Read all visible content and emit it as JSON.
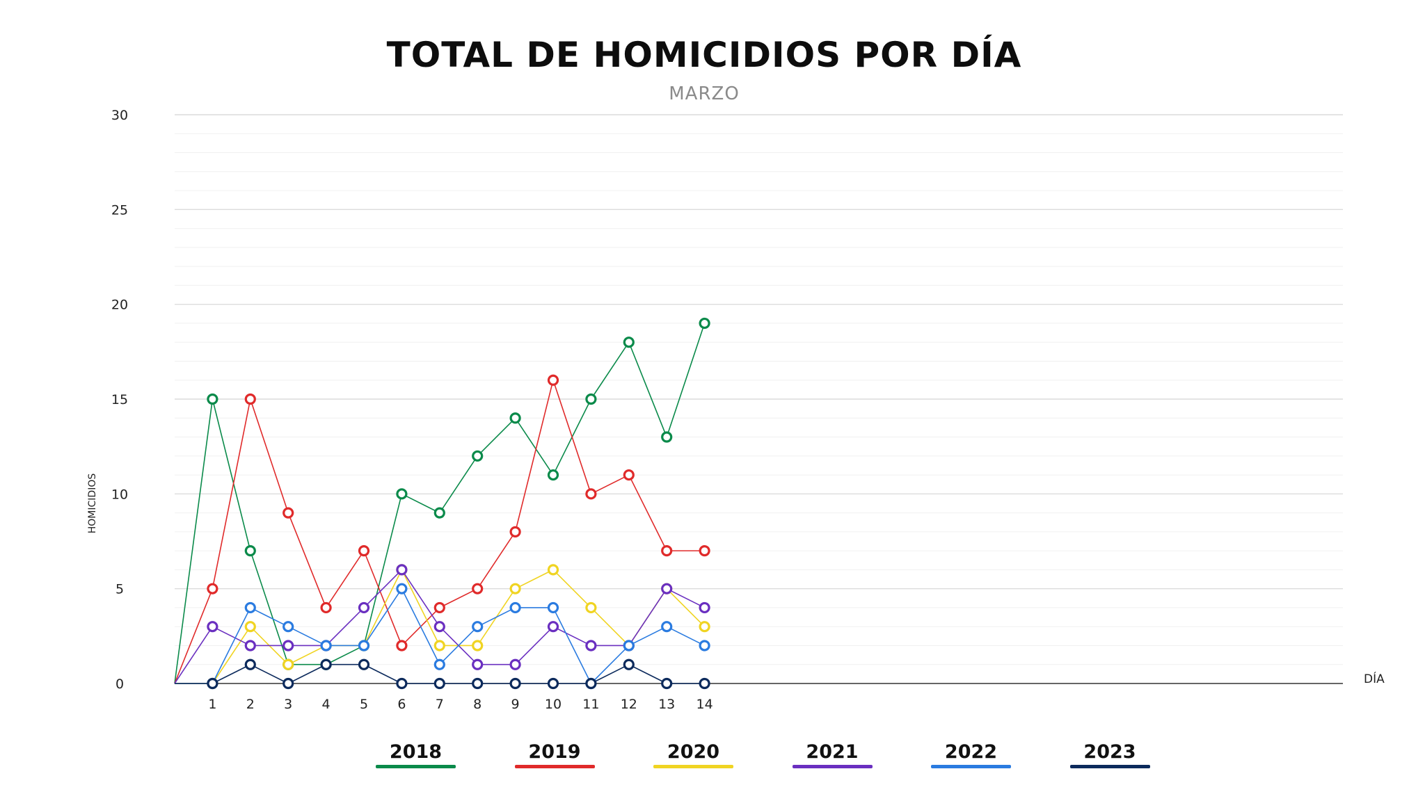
{
  "chart_data": {
    "type": "line",
    "title": "TOTAL DE HOMICIDIOS POR DÍA",
    "subtitle": "MARZO",
    "xlabel": "DÍA",
    "ylabel": "HOMICIDIOS",
    "x": [
      0,
      1,
      2,
      3,
      4,
      5,
      6,
      7,
      8,
      9,
      10,
      11,
      12,
      13,
      14
    ],
    "x_tick_labels": [
      "1",
      "2",
      "3",
      "4",
      "5",
      "6",
      "7",
      "8",
      "9",
      "10",
      "11",
      "12",
      "13",
      "14"
    ],
    "y_ticks": [
      0,
      5,
      10,
      15,
      20,
      25,
      30
    ],
    "ylim": [
      0,
      30
    ],
    "xlim": [
      0,
      31
    ],
    "grid": true,
    "legend_position": "bottom",
    "series": [
      {
        "name": "2018",
        "color": "#0a8a4a",
        "values": [
          0,
          15,
          7,
          1,
          1,
          2,
          10,
          9,
          12,
          14,
          11,
          15,
          18,
          13,
          19
        ]
      },
      {
        "name": "2019",
        "color": "#e02a2a",
        "values": [
          0,
          5,
          15,
          9,
          4,
          7,
          2,
          4,
          5,
          8,
          16,
          10,
          11,
          7,
          7
        ]
      },
      {
        "name": "2020",
        "color": "#f0d422",
        "values": [
          0,
          0,
          3,
          1,
          2,
          2,
          6,
          2,
          2,
          5,
          6,
          4,
          2,
          5,
          3
        ]
      },
      {
        "name": "2021",
        "color": "#6a2fc0",
        "values": [
          0,
          3,
          2,
          2,
          2,
          4,
          6,
          3,
          1,
          1,
          3,
          2,
          2,
          5,
          4
        ]
      },
      {
        "name": "2022",
        "color": "#2a7be0",
        "values": [
          0,
          0,
          4,
          3,
          2,
          2,
          5,
          1,
          3,
          4,
          4,
          0,
          2,
          3,
          2
        ]
      },
      {
        "name": "2023",
        "color": "#0c2a5c",
        "values": [
          0,
          0,
          1,
          0,
          1,
          1,
          0,
          0,
          0,
          0,
          0,
          0,
          1,
          0,
          0
        ]
      }
    ]
  }
}
